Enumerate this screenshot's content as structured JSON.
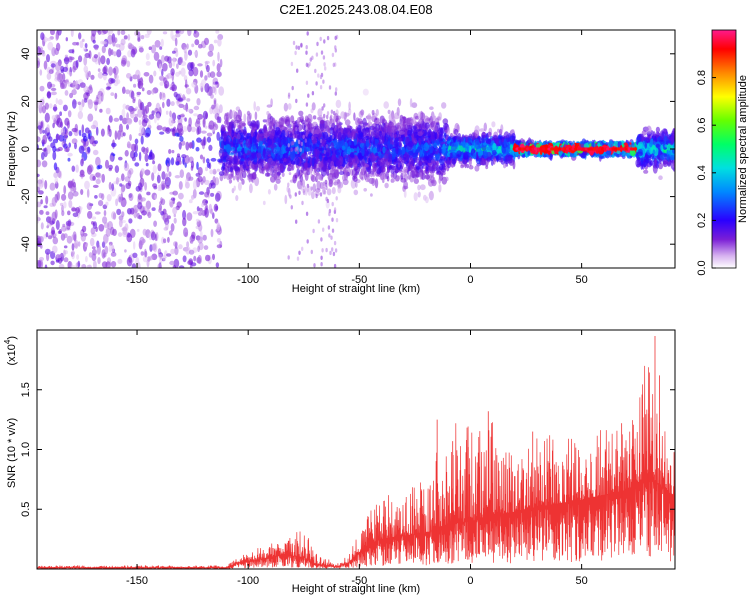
{
  "chart_data": [
    {
      "type": "heatmap",
      "title": "C2E1.2025.243.08.04.E08",
      "xlabel": "Height of straight line (km)",
      "ylabel": "Frequency (Hz)",
      "xlim": [
        -195,
        92
      ],
      "ylim": [
        -50,
        50
      ],
      "xticks": [
        -150,
        -100,
        -50,
        0,
        50
      ],
      "yticks": [
        -40,
        -20,
        0,
        20,
        40
      ],
      "grid": false,
      "colorbar": {
        "label": "Normalized spectral amplitude",
        "range": [
          0,
          1
        ],
        "ticks": [
          0.0,
          0.2,
          0.4,
          0.6,
          0.8
        ],
        "tick_labels": [
          "0.0",
          "0.2",
          "0.4",
          "0.6",
          "0.8"
        ]
      },
      "bands": [
        {
          "x": [
            -195,
            -112
          ],
          "spread_hz": 50,
          "level": 0.15
        },
        {
          "x": [
            -112,
            -10
          ],
          "spread_hz": 12,
          "level": 0.35
        },
        {
          "x": [
            -10,
            20
          ],
          "spread_hz": 5,
          "level": 0.55
        },
        {
          "x": [
            20,
            75
          ],
          "spread_hz": 2,
          "level": 0.95
        },
        {
          "x": [
            75,
            92
          ],
          "spread_hz": 6,
          "level": 0.55
        }
      ]
    },
    {
      "type": "line",
      "xlabel": "Height of straight line (km)",
      "ylabel": "SNR (10 * v/v)",
      "scale_label": "(x10",
      "scale_exponent": "4",
      "scale_suffix": ")",
      "xlim": [
        -195,
        92
      ],
      "ylim": [
        0,
        2.0
      ],
      "xticks": [
        -150,
        -100,
        -50,
        0,
        50
      ],
      "yticks": [
        0.5,
        1.0,
        1.5
      ],
      "ytick_labels": [
        "0.5",
        "1.0",
        "1.5"
      ],
      "grid": false,
      "series": [
        {
          "color": "#ee3333",
          "envelope": {
            "x": [
              -195,
              -150,
              -110,
              -105,
              -95,
              -85,
              -75,
              -70,
              -60,
              -55,
              -50,
              -45,
              -40,
              -30,
              -20,
              -10,
              0,
              10,
              20,
              30,
              40,
              50,
              60,
              70,
              75,
              80,
              85,
              92
            ],
            "mean": [
              0.01,
              0.01,
              0.01,
              0.05,
              0.08,
              0.12,
              0.1,
              0.04,
              0.02,
              0.05,
              0.14,
              0.22,
              0.25,
              0.28,
              0.3,
              0.38,
              0.4,
              0.45,
              0.48,
              0.52,
              0.55,
              0.58,
              0.62,
              0.66,
              0.72,
              0.8,
              0.7,
              0.6
            ],
            "peak": [
              0.03,
              0.03,
              0.03,
              0.1,
              0.18,
              0.25,
              0.35,
              0.15,
              0.05,
              0.12,
              0.3,
              0.5,
              0.62,
              0.65,
              0.8,
              1.25,
              1.2,
              1.3,
              0.9,
              1.1,
              1.2,
              1.05,
              1.25,
              1.2,
              1.35,
              1.95,
              1.4,
              1.0
            ]
          },
          "spikes": [
            {
              "x": -15,
              "y": 1.25
            },
            {
              "x": -8,
              "y": 1.07
            },
            {
              "x": -1,
              "y": 1.02
            },
            {
              "x": 8,
              "y": 1.32
            },
            {
              "x": 28,
              "y": 1.15
            },
            {
              "x": 68,
              "y": 1.22
            },
            {
              "x": 80,
              "y": 1.3
            },
            {
              "x": 83,
              "y": 1.95
            },
            {
              "x": 85,
              "y": 1.62
            }
          ]
        }
      ]
    }
  ]
}
